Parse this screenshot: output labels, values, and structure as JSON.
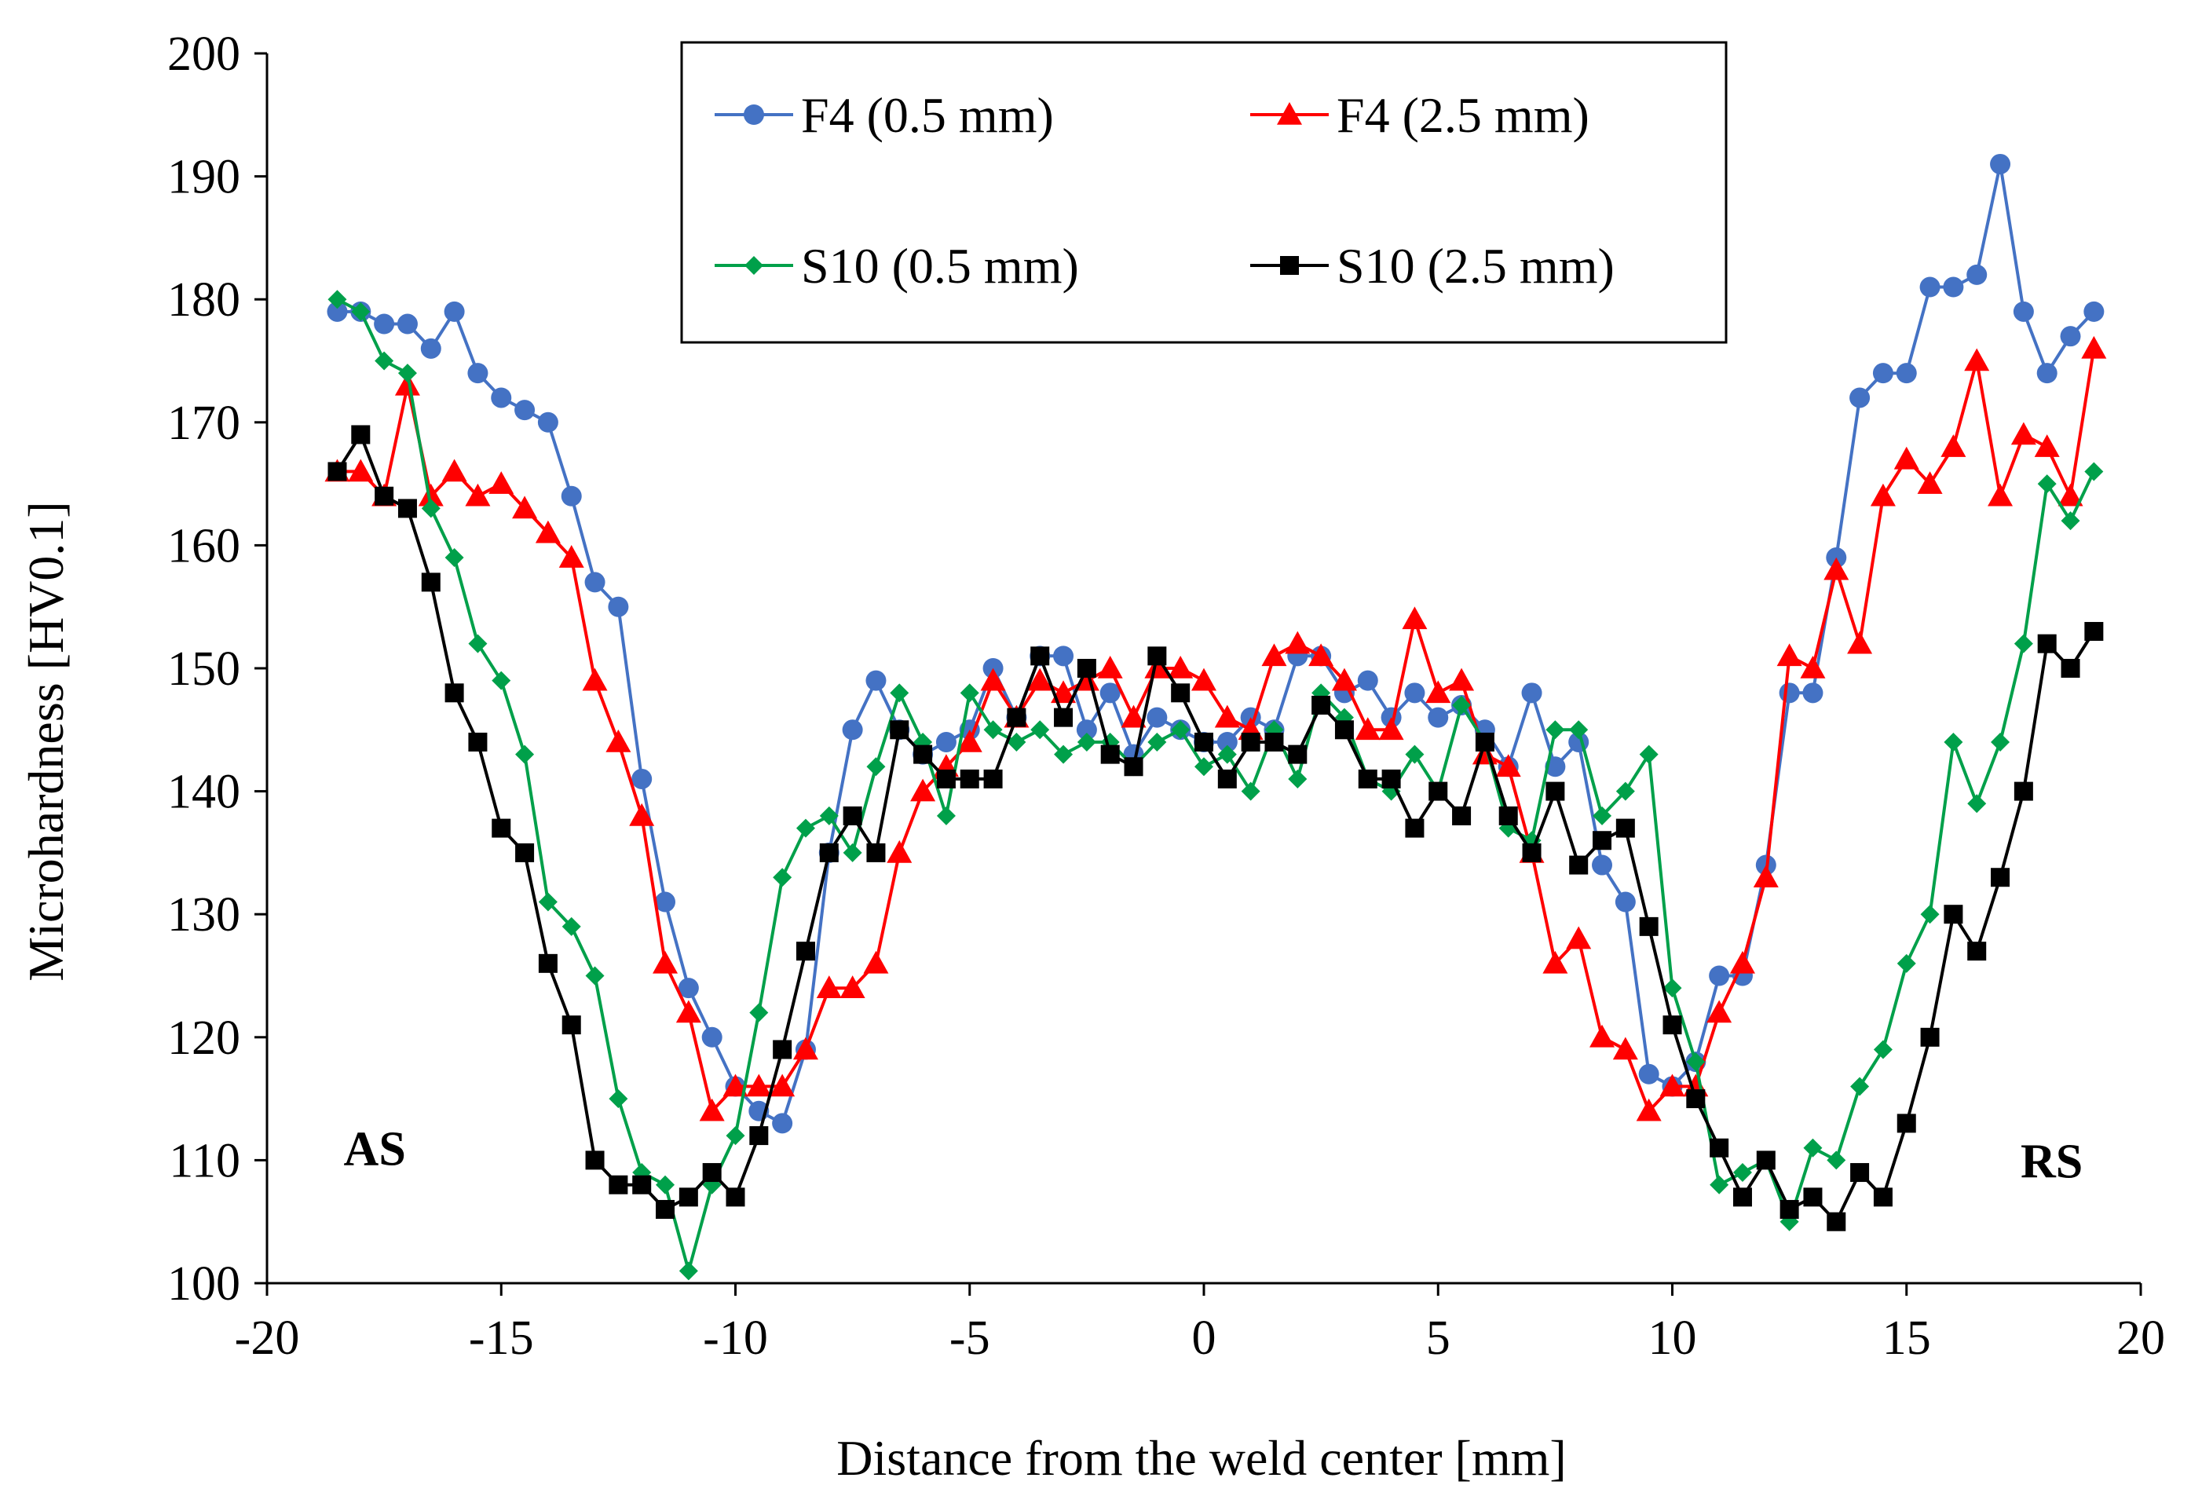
{
  "chart_data": {
    "type": "line",
    "xlabel": "Distance from the weld center [mm]",
    "ylabel": "Microhardness [HV0.1]",
    "xlim": [
      -20,
      20
    ],
    "ylim": [
      100,
      200
    ],
    "xticks": [
      -20,
      -15,
      -10,
      -5,
      0,
      5,
      10,
      15,
      20
    ],
    "yticks": [
      100,
      110,
      120,
      130,
      140,
      150,
      160,
      170,
      180,
      190,
      200
    ],
    "grid": false,
    "legend_position": "top-center",
    "annotations": [
      {
        "text": "AS",
        "x": -17.7,
        "y": 111
      },
      {
        "text": "RS",
        "x": 18.1,
        "y": 110
      }
    ],
    "series": [
      {
        "name": "F4 (0.5 mm)",
        "color": "#4472C4",
        "marker": "circle",
        "x": [
          -18.5,
          -18,
          -17.5,
          -17,
          -16.5,
          -16,
          -15.5,
          -15,
          -14.5,
          -14,
          -13.5,
          -13,
          -12.5,
          -12,
          -11.5,
          -11,
          -10.5,
          -10,
          -9.5,
          -9,
          -8.5,
          -8,
          -7.5,
          -7,
          -6.5,
          -6,
          -5.5,
          -5,
          -4.5,
          -4,
          -3.5,
          -3,
          -2.5,
          -2,
          -1.5,
          -1,
          -0.5,
          0,
          0.5,
          1,
          1.5,
          2,
          2.5,
          3,
          3.5,
          4,
          4.5,
          5,
          5.5,
          6,
          6.5,
          7,
          7.5,
          8,
          8.5,
          9,
          9.5,
          10,
          10.5,
          11,
          11.5,
          12,
          12.5,
          13,
          13.5,
          14,
          14.5,
          15,
          15.5,
          16,
          16.5,
          17,
          17.5,
          18,
          18.5,
          19
        ],
        "y": [
          179,
          179,
          178,
          178,
          176,
          179,
          174,
          172,
          171,
          170,
          164,
          157,
          155,
          141,
          131,
          124,
          120,
          116,
          114,
          113,
          119,
          135,
          145,
          149,
          145,
          143,
          144,
          145,
          150,
          146,
          151,
          151,
          145,
          148,
          143,
          146,
          145,
          144,
          144,
          146,
          145,
          151,
          151,
          148,
          149,
          146,
          148,
          146,
          147,
          145,
          142,
          148,
          142,
          144,
          134,
          131,
          117,
          116,
          118,
          125,
          125,
          134,
          148,
          148,
          159,
          172,
          174,
          174,
          181,
          181,
          182,
          191,
          179,
          174,
          177,
          179
        ]
      },
      {
        "name": "F4 (2.5 mm)",
        "color": "#FF0000",
        "marker": "triangle",
        "x": [
          -18.5,
          -18,
          -17.5,
          -17,
          -16.5,
          -16,
          -15.5,
          -15,
          -14.5,
          -14,
          -13.5,
          -13,
          -12.5,
          -12,
          -11.5,
          -11,
          -10.5,
          -10,
          -9.5,
          -9,
          -8.5,
          -8,
          -7.5,
          -7,
          -6.5,
          -6,
          -5.5,
          -5,
          -4.5,
          -4,
          -3.5,
          -3,
          -2.5,
          -2,
          -1.5,
          -1,
          -0.5,
          0,
          0.5,
          1,
          1.5,
          2,
          2.5,
          3,
          3.5,
          4,
          4.5,
          5,
          5.5,
          6,
          6.5,
          7,
          7.5,
          8,
          8.5,
          9,
          9.5,
          10,
          10.5,
          11,
          11.5,
          12,
          12.5,
          13,
          13.5,
          14,
          14.5,
          15,
          15.5,
          16,
          16.5,
          17,
          17.5,
          18,
          18.5,
          19
        ],
        "y": [
          166,
          166,
          164,
          173,
          164,
          166,
          164,
          165,
          163,
          161,
          159,
          149,
          144,
          138,
          126,
          122,
          114,
          116,
          116,
          116,
          119,
          124,
          124,
          126,
          135,
          140,
          142,
          144,
          149,
          146,
          149,
          148,
          149,
          150,
          146,
          150,
          150,
          149,
          146,
          145,
          151,
          152,
          151,
          149,
          145,
          145,
          154,
          148,
          149,
          143,
          142,
          135,
          126,
          128,
          120,
          119,
          114,
          116,
          116,
          122,
          126,
          133,
          151,
          150,
          158,
          152,
          164,
          167,
          165,
          168,
          175,
          164,
          169,
          168,
          164,
          176
        ]
      },
      {
        "name": "S10 (0.5 mm)",
        "color": "#00A04A",
        "marker": "diamond",
        "x": [
          -18.5,
          -18,
          -17.5,
          -17,
          -16.5,
          -16,
          -15.5,
          -15,
          -14.5,
          -14,
          -13.5,
          -13,
          -12.5,
          -12,
          -11.5,
          -11,
          -10.5,
          -10,
          -9.5,
          -9,
          -8.5,
          -8,
          -7.5,
          -7,
          -6.5,
          -6,
          -5.5,
          -5,
          -4.5,
          -4,
          -3.5,
          -3,
          -2.5,
          -2,
          -1.5,
          -1,
          -0.5,
          0,
          0.5,
          1,
          1.5,
          2,
          2.5,
          3,
          3.5,
          4,
          4.5,
          5,
          5.5,
          6,
          6.5,
          7,
          7.5,
          8,
          8.5,
          9,
          9.5,
          10,
          10.5,
          11,
          11.5,
          12,
          12.5,
          13,
          13.5,
          14,
          14.5,
          15,
          15.5,
          16,
          16.5,
          17,
          17.5,
          18,
          18.5,
          19
        ],
        "y": [
          180,
          179,
          175,
          174,
          163,
          159,
          152,
          149,
          143,
          131,
          129,
          125,
          115,
          109,
          108,
          101,
          108,
          112,
          122,
          133,
          137,
          138,
          135,
          142,
          148,
          144,
          138,
          148,
          145,
          144,
          145,
          143,
          144,
          144,
          142,
          144,
          145,
          142,
          143,
          140,
          145,
          141,
          148,
          146,
          141,
          140,
          143,
          140,
          147,
          144,
          137,
          136,
          145,
          145,
          138,
          140,
          143,
          124,
          118,
          108,
          109,
          110,
          105,
          111,
          110,
          116,
          119,
          126,
          130,
          144,
          139,
          144,
          152,
          165,
          162,
          166
        ]
      },
      {
        "name": "S10 (2.5 mm)",
        "color": "#000000",
        "marker": "square",
        "x": [
          -18.5,
          -18,
          -17.5,
          -17,
          -16.5,
          -16,
          -15.5,
          -15,
          -14.5,
          -14,
          -13.5,
          -13,
          -12.5,
          -12,
          -11.5,
          -11,
          -10.5,
          -10,
          -9.5,
          -9,
          -8.5,
          -8,
          -7.5,
          -7,
          -6.5,
          -6,
          -5.5,
          -5,
          -4.5,
          -4,
          -3.5,
          -3,
          -2.5,
          -2,
          -1.5,
          -1,
          -0.5,
          0,
          0.5,
          1,
          1.5,
          2,
          2.5,
          3,
          3.5,
          4,
          4.5,
          5,
          5.5,
          6,
          6.5,
          7,
          7.5,
          8,
          8.5,
          9,
          9.5,
          10,
          10.5,
          11,
          11.5,
          12,
          12.5,
          13,
          13.5,
          14,
          14.5,
          15,
          15.5,
          16,
          16.5,
          17,
          17.5,
          18,
          18.5,
          19
        ],
        "y": [
          166,
          169,
          164,
          163,
          157,
          148,
          144,
          137,
          135,
          126,
          121,
          110,
          108,
          108,
          106,
          107,
          109,
          107,
          112,
          119,
          127,
          135,
          138,
          135,
          145,
          143,
          141,
          141,
          141,
          146,
          151,
          146,
          150,
          143,
          142,
          151,
          148,
          144,
          141,
          144,
          144,
          143,
          147,
          145,
          141,
          141,
          137,
          140,
          138,
          144,
          138,
          135,
          140,
          134,
          136,
          137,
          129,
          121,
          115,
          111,
          107,
          110,
          106,
          107,
          105,
          109,
          107,
          113,
          120,
          130,
          127,
          133,
          140,
          152,
          150,
          153
        ]
      }
    ]
  }
}
